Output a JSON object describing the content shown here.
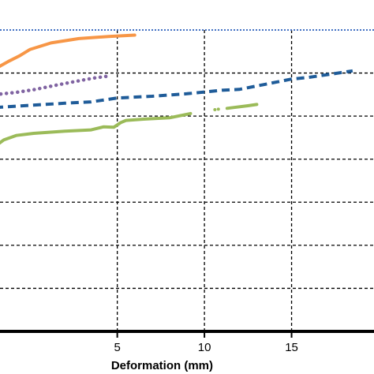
{
  "chart_data": {
    "type": "line",
    "xlabel": "Deformation (mm)",
    "xlim": [
      -2,
      20
    ],
    "ylim": [
      0,
      7
    ],
    "grid": true,
    "x_ticks": [
      5,
      10,
      15
    ],
    "x_tick_labels": [
      "5",
      "10",
      "15"
    ],
    "y_gridlines": [
      1,
      2,
      3,
      4,
      5,
      6,
      7
    ],
    "reference_line": {
      "y": 7,
      "color": "#4472C4",
      "style": "dotted"
    },
    "series": [
      {
        "color": "#F79646",
        "style": "solid",
        "points": [
          [
            -2,
            6.1
          ],
          [
            -1.2,
            6.28
          ],
          [
            -0.6,
            6.4
          ],
          [
            0,
            6.55
          ],
          [
            1.2,
            6.7
          ],
          [
            2.8,
            6.8
          ],
          [
            4.5,
            6.85
          ],
          [
            6,
            6.88
          ]
        ]
      },
      {
        "color": "#8064A2",
        "style": "dotted",
        "points": [
          [
            -2,
            5.5
          ],
          [
            -0.8,
            5.55
          ],
          [
            0.3,
            5.62
          ],
          [
            1.5,
            5.72
          ],
          [
            2.8,
            5.82
          ],
          [
            3.6,
            5.88
          ],
          [
            4.5,
            5.93
          ]
        ]
      },
      {
        "color": "#1F5C99",
        "style": "dashed",
        "points": [
          [
            -2,
            5.2
          ],
          [
            0,
            5.25
          ],
          [
            2,
            5.3
          ],
          [
            3.5,
            5.33
          ],
          [
            5,
            5.42
          ],
          [
            7,
            5.46
          ],
          [
            9,
            5.52
          ],
          [
            11,
            5.6
          ],
          [
            12,
            5.62
          ],
          [
            14,
            5.78
          ],
          [
            15,
            5.86
          ],
          [
            16,
            5.9
          ],
          [
            18,
            6.02
          ],
          [
            18.5,
            6.05
          ]
        ]
      },
      {
        "color": "#9BBB59",
        "style": "solid-gaps",
        "points": [
          [
            -2,
            4.3
          ],
          [
            -1.5,
            4.45
          ],
          [
            -0.8,
            4.55
          ],
          [
            0.2,
            4.6
          ],
          [
            2,
            4.65
          ],
          [
            3.5,
            4.68
          ],
          [
            4.2,
            4.75
          ],
          [
            4.8,
            4.74
          ],
          [
            5.2,
            4.85
          ],
          [
            5.5,
            4.9
          ],
          [
            6.5,
            4.93
          ],
          [
            8,
            4.96
          ],
          [
            9.2,
            5.06
          ],
          [
            10,
            5.12
          ],
          [
            10.6,
            5.15
          ],
          [
            10.8,
            5.16
          ],
          [
            11.3,
            5.18
          ],
          [
            11.7,
            5.2
          ],
          [
            12.5,
            5.24
          ],
          [
            13,
            5.27
          ],
          [
            13.5,
            5.3
          ],
          [
            14,
            5.33
          ],
          [
            14.5,
            5.35
          ],
          [
            15,
            5.38
          ],
          [
            15.6,
            5.4
          ]
        ]
      }
    ]
  }
}
